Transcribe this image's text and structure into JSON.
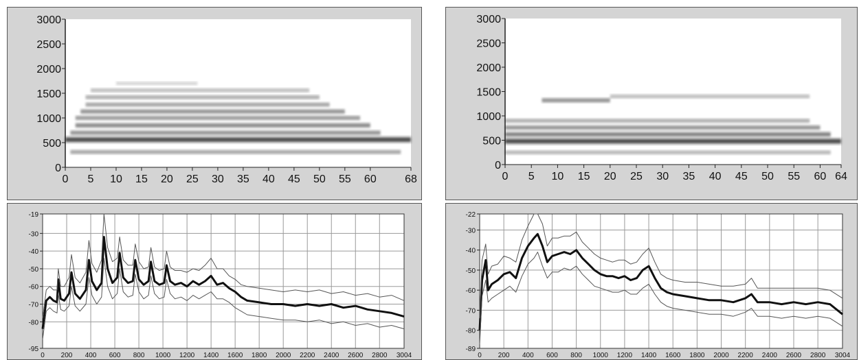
{
  "colors": {
    "panel_bg": "#d4d4d4",
    "plot_bg": "#ffffff",
    "grid": "#9a9a9a",
    "mean_line": "#111111",
    "envelope_line": "#555555",
    "spectrogram_ink": "#222222"
  },
  "chart_data": [
    {
      "id": "spectrogram-left",
      "type": "heatmap",
      "title": "",
      "xlabel": "",
      "ylabel": "",
      "grid": false,
      "x_ticks": [
        "0",
        "5",
        "10",
        "15",
        "20",
        "25",
        "30",
        "35",
        "40",
        "45",
        "50",
        "55",
        "60",
        "68"
      ],
      "y_ticks": [
        "0",
        "500",
        "1000",
        "1500",
        "2000",
        "2500",
        "3000"
      ],
      "xlim": [
        0,
        68
      ],
      "ylim": [
        0,
        3000
      ],
      "harmonic_bands": [
        {
          "freq": 310,
          "x": [
            1,
            66
          ],
          "intensity": 0.45
        },
        {
          "freq": 560,
          "x": [
            0,
            68
          ],
          "intensity": 0.95
        },
        {
          "freq": 700,
          "x": [
            1,
            62
          ],
          "intensity": 0.55
        },
        {
          "freq": 850,
          "x": [
            2,
            60
          ],
          "intensity": 0.6
        },
        {
          "freq": 1000,
          "x": [
            2,
            58
          ],
          "intensity": 0.5
        },
        {
          "freq": 1130,
          "x": [
            3,
            55
          ],
          "intensity": 0.55
        },
        {
          "freq": 1270,
          "x": [
            4,
            52
          ],
          "intensity": 0.45
        },
        {
          "freq": 1420,
          "x": [
            4,
            50
          ],
          "intensity": 0.4
        },
        {
          "freq": 1560,
          "x": [
            5,
            48
          ],
          "intensity": 0.3
        },
        {
          "freq": 1700,
          "x": [
            10,
            26
          ],
          "intensity": 0.15
        }
      ]
    },
    {
      "id": "spectrogram-right",
      "type": "heatmap",
      "title": "",
      "xlabel": "",
      "ylabel": "",
      "grid": false,
      "x_ticks": [
        "0",
        "5",
        "10",
        "15",
        "20",
        "25",
        "30",
        "35",
        "40",
        "45",
        "50",
        "55",
        "60",
        "64"
      ],
      "y_ticks": [
        "0",
        "500",
        "1000",
        "1500",
        "2000",
        "2500",
        "3000"
      ],
      "xlim": [
        0,
        64
      ],
      "ylim": [
        0,
        3000
      ],
      "harmonic_bands": [
        {
          "freq": 250,
          "x": [
            0,
            62
          ],
          "intensity": 0.35
        },
        {
          "freq": 480,
          "x": [
            0,
            64
          ],
          "intensity": 0.95
        },
        {
          "freq": 620,
          "x": [
            0,
            62
          ],
          "intensity": 0.65
        },
        {
          "freq": 760,
          "x": [
            0,
            60
          ],
          "intensity": 0.55
        },
        {
          "freq": 900,
          "x": [
            0,
            58
          ],
          "intensity": 0.4
        },
        {
          "freq": 1320,
          "x": [
            7,
            20
          ],
          "intensity": 0.55
        },
        {
          "freq": 1400,
          "x": [
            20,
            58
          ],
          "intensity": 0.3
        }
      ]
    },
    {
      "id": "spectrum-left",
      "type": "line",
      "title": "",
      "xlabel": "",
      "ylabel": "",
      "grid": true,
      "x_ticks": [
        "0",
        "200",
        "400",
        "600",
        "800",
        "1000",
        "1200",
        "1400",
        "1600",
        "1800",
        "2000",
        "2200",
        "2400",
        "2600",
        "2800",
        "3004"
      ],
      "xlim": [
        0,
        3004
      ],
      "y_ticks": [
        {
          "label": "-19",
          "value": -19
        },
        {
          "label": "-30",
          "value": -30
        },
        {
          "label": "-40",
          "value": -40
        },
        {
          "label": "-50",
          "value": -50
        },
        {
          "label": "-60",
          "value": -60
        },
        {
          "label": "-70",
          "value": -70
        },
        {
          "label": "-80",
          "value": -80
        },
        {
          "label": "-95",
          "value": -95
        }
      ],
      "ylim": [
        -95,
        -19
      ],
      "series": [
        {
          "role": "mean",
          "x": [
            0,
            30,
            60,
            90,
            120,
            130,
            150,
            180,
            220,
            240,
            270,
            310,
            360,
            385,
            410,
            450,
            490,
            510,
            540,
            580,
            620,
            640,
            670,
            710,
            750,
            770,
            800,
            840,
            880,
            900,
            930,
            970,
            1010,
            1030,
            1060,
            1100,
            1150,
            1200,
            1250,
            1300,
            1350,
            1400,
            1450,
            1500,
            1550,
            1600,
            1650,
            1700,
            1800,
            1900,
            2000,
            2100,
            2200,
            2300,
            2400,
            2500,
            2600,
            2700,
            2800,
            2900,
            3004
          ],
          "y": [
            -84,
            -68,
            -66,
            -68,
            -69,
            -56,
            -67,
            -68,
            -64,
            -52,
            -64,
            -67,
            -62,
            -45,
            -57,
            -62,
            -58,
            -32,
            -50,
            -58,
            -55,
            -41,
            -55,
            -58,
            -57,
            -45,
            -56,
            -59,
            -57,
            -46,
            -57,
            -59,
            -58,
            -48,
            -57,
            -59,
            -58,
            -60,
            -57,
            -59,
            -57,
            -54,
            -59,
            -58,
            -61,
            -63,
            -66,
            -68,
            -69,
            -70,
            -70,
            -71,
            -70,
            -71,
            -70,
            -72,
            -71,
            -73,
            -74,
            -75,
            -77
          ]
        },
        {
          "role": "upper",
          "x": [
            0,
            30,
            60,
            90,
            120,
            130,
            150,
            180,
            220,
            240,
            270,
            310,
            360,
            385,
            410,
            450,
            490,
            510,
            540,
            580,
            620,
            640,
            670,
            710,
            750,
            770,
            800,
            840,
            880,
            900,
            930,
            970,
            1010,
            1030,
            1060,
            1100,
            1150,
            1200,
            1250,
            1300,
            1350,
            1400,
            1450,
            1500,
            1550,
            1600,
            1650,
            1700,
            1800,
            1900,
            2000,
            2100,
            2200,
            2300,
            2400,
            2500,
            2600,
            2700,
            2800,
            2900,
            3004
          ],
          "y": [
            -78,
            -62,
            -60,
            -62,
            -62,
            -50,
            -60,
            -60,
            -55,
            -42,
            -55,
            -58,
            -52,
            -34,
            -47,
            -52,
            -45,
            -19,
            -38,
            -46,
            -44,
            -32,
            -45,
            -48,
            -48,
            -36,
            -46,
            -50,
            -49,
            -38,
            -49,
            -51,
            -50,
            -40,
            -49,
            -51,
            -51,
            -52,
            -50,
            -51,
            -48,
            -44,
            -50,
            -50,
            -54,
            -56,
            -59,
            -60,
            -61,
            -62,
            -63,
            -62,
            -63,
            -62,
            -64,
            -63,
            -65,
            -64,
            -66,
            -65,
            -68
          ]
        },
        {
          "role": "lower",
          "x": [
            0,
            30,
            60,
            90,
            120,
            130,
            150,
            180,
            220,
            240,
            270,
            310,
            360,
            385,
            410,
            450,
            490,
            510,
            540,
            580,
            620,
            640,
            670,
            710,
            750,
            770,
            800,
            840,
            880,
            900,
            930,
            970,
            1010,
            1030,
            1060,
            1100,
            1150,
            1200,
            1250,
            1300,
            1350,
            1400,
            1450,
            1500,
            1550,
            1600,
            1650,
            1700,
            1800,
            1900,
            2000,
            2100,
            2200,
            2300,
            2400,
            2500,
            2600,
            2700,
            2800,
            2900,
            3004
          ],
          "y": [
            -90,
            -74,
            -72,
            -74,
            -75,
            -64,
            -73,
            -74,
            -71,
            -60,
            -71,
            -74,
            -70,
            -55,
            -65,
            -70,
            -66,
            -44,
            -60,
            -67,
            -64,
            -50,
            -63,
            -66,
            -65,
            -53,
            -63,
            -67,
            -65,
            -54,
            -64,
            -67,
            -66,
            -56,
            -64,
            -67,
            -66,
            -68,
            -65,
            -67,
            -65,
            -63,
            -67,
            -67,
            -69,
            -72,
            -74,
            -76,
            -77,
            -78,
            -79,
            -79,
            -80,
            -79,
            -81,
            -80,
            -82,
            -81,
            -83,
            -82,
            -84
          ]
        }
      ]
    },
    {
      "id": "spectrum-right",
      "type": "line",
      "title": "",
      "xlabel": "",
      "ylabel": "",
      "grid": true,
      "x_ticks": [
        "0",
        "200",
        "400",
        "600",
        "800",
        "1000",
        "1200",
        "1400",
        "1600",
        "1800",
        "2000",
        "2200",
        "2400",
        "2600",
        "2800",
        "3004"
      ],
      "xlim": [
        0,
        3004
      ],
      "y_ticks": [
        {
          "label": "-22",
          "value": -22
        },
        {
          "label": "-30",
          "value": -30
        },
        {
          "label": "-40",
          "value": -40
        },
        {
          "label": "-50",
          "value": -50
        },
        {
          "label": "-60",
          "value": -60
        },
        {
          "label": "-70",
          "value": -70
        },
        {
          "label": "-80",
          "value": -80
        },
        {
          "label": "-89",
          "value": -89
        }
      ],
      "ylim": [
        -89,
        -22
      ],
      "series": [
        {
          "role": "mean",
          "x": [
            0,
            20,
            50,
            70,
            100,
            150,
            200,
            250,
            300,
            350,
            400,
            450,
            480,
            520,
            560,
            600,
            650,
            700,
            750,
            800,
            850,
            900,
            950,
            1000,
            1050,
            1100,
            1150,
            1200,
            1250,
            1300,
            1350,
            1400,
            1450,
            1500,
            1550,
            1600,
            1700,
            1800,
            1900,
            2000,
            2100,
            2200,
            2250,
            2300,
            2400,
            2500,
            2600,
            2700,
            2800,
            2900,
            3004
          ],
          "y": [
            -80,
            -55,
            -45,
            -60,
            -57,
            -55,
            -52,
            -51,
            -54,
            -44,
            -38,
            -34,
            -32,
            -38,
            -46,
            -43,
            -42,
            -41,
            -42,
            -40,
            -44,
            -47,
            -50,
            -52,
            -53,
            -53,
            -54,
            -53,
            -55,
            -54,
            -50,
            -48,
            -54,
            -59,
            -61,
            -62,
            -63,
            -64,
            -65,
            -65,
            -66,
            -64,
            -62,
            -66,
            -66,
            -67,
            -66,
            -67,
            -66,
            -67,
            -72
          ]
        },
        {
          "role": "upper",
          "x": [
            0,
            20,
            50,
            70,
            100,
            150,
            200,
            250,
            300,
            350,
            400,
            450,
            480,
            520,
            560,
            600,
            650,
            700,
            750,
            800,
            850,
            900,
            950,
            1000,
            1050,
            1100,
            1150,
            1200,
            1250,
            1300,
            1350,
            1400,
            1450,
            1500,
            1550,
            1600,
            1700,
            1800,
            1900,
            2000,
            2100,
            2200,
            2250,
            2300,
            2400,
            2500,
            2600,
            2700,
            2800,
            2900,
            3004
          ],
          "y": [
            -74,
            -45,
            -37,
            -52,
            -48,
            -47,
            -43,
            -44,
            -46,
            -35,
            -28,
            -22,
            -22,
            -27,
            -38,
            -34,
            -34,
            -33,
            -33,
            -31,
            -36,
            -39,
            -42,
            -44,
            -45,
            -46,
            -45,
            -45,
            -47,
            -46,
            -42,
            -39,
            -46,
            -52,
            -54,
            -55,
            -56,
            -56,
            -57,
            -58,
            -58,
            -57,
            -54,
            -59,
            -59,
            -59,
            -59,
            -59,
            -59,
            -60,
            -64
          ]
        },
        {
          "role": "lower",
          "x": [
            0,
            20,
            50,
            70,
            100,
            150,
            200,
            250,
            300,
            350,
            400,
            450,
            480,
            520,
            560,
            600,
            650,
            700,
            750,
            800,
            850,
            900,
            950,
            1000,
            1050,
            1100,
            1150,
            1200,
            1250,
            1300,
            1350,
            1400,
            1450,
            1500,
            1550,
            1600,
            1700,
            1800,
            1900,
            2000,
            2100,
            2200,
            2250,
            2300,
            2400,
            2500,
            2600,
            2700,
            2800,
            2900,
            3004
          ],
          "y": [
            -87,
            -63,
            -55,
            -66,
            -64,
            -62,
            -60,
            -58,
            -61,
            -53,
            -47,
            -44,
            -41,
            -48,
            -54,
            -51,
            -51,
            -49,
            -50,
            -48,
            -52,
            -55,
            -58,
            -59,
            -60,
            -61,
            -61,
            -60,
            -62,
            -62,
            -59,
            -57,
            -62,
            -66,
            -68,
            -69,
            -70,
            -71,
            -72,
            -72,
            -73,
            -71,
            -69,
            -73,
            -73,
            -74,
            -73,
            -74,
            -73,
            -74,
            -78
          ]
        }
      ]
    }
  ]
}
